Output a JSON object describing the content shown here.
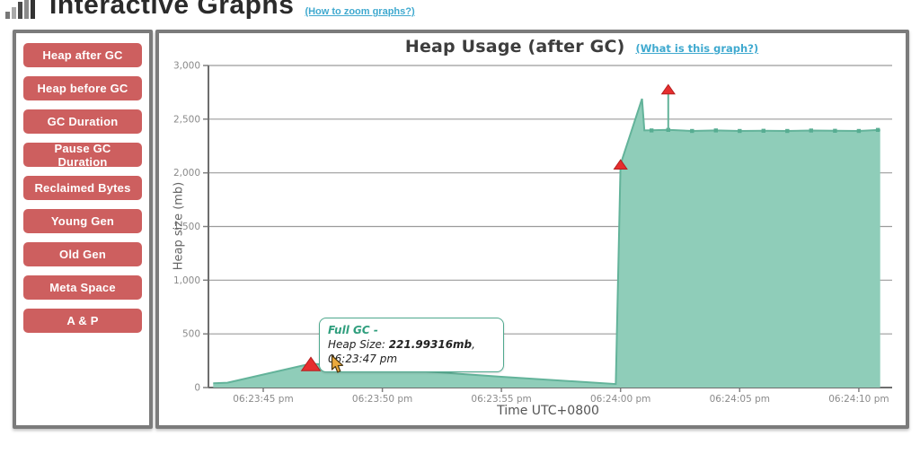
{
  "header": {
    "title": "Interactive Graphs",
    "zoom_help_link": "(How to zoom graphs?)"
  },
  "sidebar": {
    "buttons": [
      "Heap after GC",
      "Heap before GC",
      "GC Duration",
      "Pause GC Duration",
      "Reclaimed Bytes",
      "Young Gen",
      "Old Gen",
      "Meta Space",
      "A & P"
    ]
  },
  "chart": {
    "help_link": "(What is this graph?)"
  },
  "tooltip": {
    "event_label": "Full GC -",
    "size_label": "Heap Size: ",
    "size_value": "221.99316mb",
    "time_suffix": ", 06:23:47 pm"
  },
  "chart_data": {
    "type": "area",
    "title": "Heap Usage (after GC)",
    "xlabel": "Time UTC+0800",
    "ylabel": "Heap size (mb)",
    "ylim": [
      0,
      3000
    ],
    "grid": true,
    "legend": false,
    "y_ticks": [
      {
        "value": 0,
        "label": "0"
      },
      {
        "value": 500,
        "label": "500"
      },
      {
        "value": 1000,
        "label": "1,000"
      },
      {
        "value": 1500,
        "label": "1,500"
      },
      {
        "value": 2000,
        "label": "2,000"
      },
      {
        "value": 2500,
        "label": "2,500"
      },
      {
        "value": 3000,
        "label": "3,000"
      }
    ],
    "x_domain": [
      "06:23:42.7",
      "06:24:11.4"
    ],
    "x_ticks": [
      {
        "time": "06:23:45",
        "label": "06:23:45 pm"
      },
      {
        "time": "06:23:50",
        "label": "06:23:50 pm"
      },
      {
        "time": "06:23:55",
        "label": "06:23:55 pm"
      },
      {
        "time": "06:24:00",
        "label": "06:24:00 pm"
      },
      {
        "time": "06:24:05",
        "label": "06:24:05 pm"
      },
      {
        "time": "06:24:10",
        "label": "06:24:10 pm"
      }
    ],
    "series": [
      {
        "name": "Heap after GC",
        "points": [
          [
            "06:23:42.9",
            40
          ],
          [
            "06:23:43.5",
            45
          ],
          [
            "06:23:47.0",
            222
          ],
          [
            "06:23:51.0",
            163
          ],
          [
            "06:23:55.0",
            100
          ],
          [
            "06:23:59.8",
            33
          ],
          [
            "06:24:00.0",
            2080
          ],
          [
            "06:24:00.9",
            2690
          ],
          [
            "06:24:01.0",
            2395
          ],
          [
            "06:24:02.0",
            2400
          ],
          [
            "06:24:03.0",
            2390
          ],
          [
            "06:24:04.0",
            2395
          ],
          [
            "06:24:05.0",
            2390
          ],
          [
            "06:24:06.0",
            2392
          ],
          [
            "06:24:07.0",
            2390
          ],
          [
            "06:24:08.0",
            2394
          ],
          [
            "06:24:09.0",
            2392
          ],
          [
            "06:24:10.0",
            2390
          ],
          [
            "06:24:10.9",
            2400
          ]
        ]
      }
    ],
    "plateau_markers": [
      [
        "06:24:01.3",
        2395
      ],
      [
        "06:24:02.0",
        2400
      ],
      [
        "06:24:03.0",
        2390
      ],
      [
        "06:24:04.0",
        2395
      ],
      [
        "06:24:05.0",
        2390
      ],
      [
        "06:24:06.0",
        2392
      ],
      [
        "06:24:07.0",
        2390
      ],
      [
        "06:24:08.0",
        2394
      ],
      [
        "06:24:09.0",
        2392
      ],
      [
        "06:24:10.0",
        2390
      ],
      [
        "06:24:10.8",
        2400
      ]
    ],
    "gc_events": [
      {
        "time": "06:23:47",
        "value": 222,
        "size": 13
      },
      {
        "time": "06:24:00",
        "value": 2080,
        "size": 9
      },
      {
        "time": "06:24:02",
        "value": 2780,
        "size": 9,
        "line_from": 2400
      }
    ]
  },
  "colors": {
    "button_red": "#cd5f5f",
    "area_fill": "#8fcdb9",
    "area_stroke": "#63b39a",
    "marker": "#57ad92",
    "event_red": "#e62e2e",
    "event_red_edge": "#b51f1f",
    "link_blue": "#3fa9cf",
    "tooltip_border": "#4fa98e",
    "grid_gray": "#9b9b9b",
    "axis_gray": "#6e6e6e",
    "panel_border": "#7b7b7b"
  }
}
